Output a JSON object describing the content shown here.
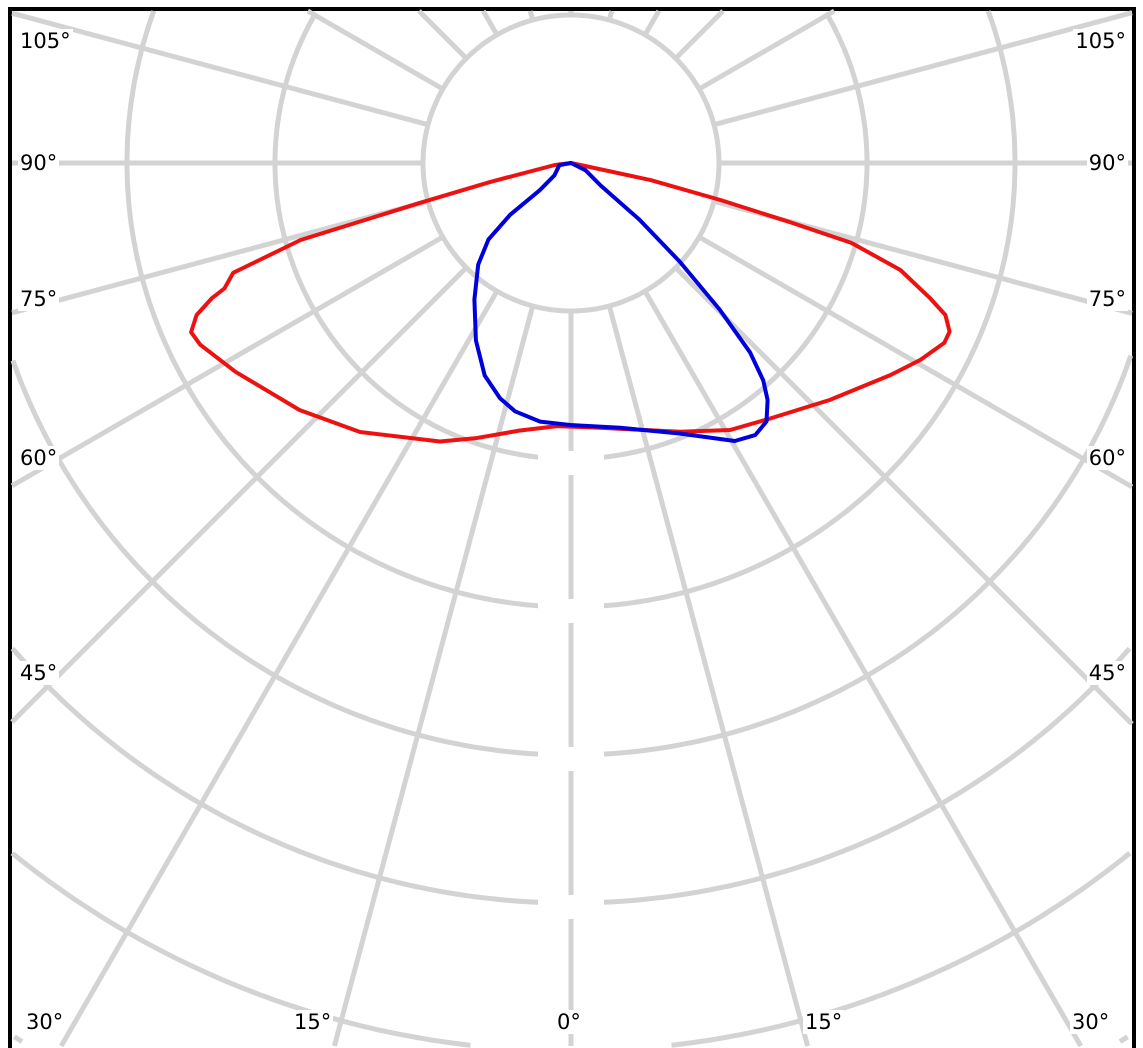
{
  "chart_data": {
    "type": "polar-line",
    "angle_unit": "degrees",
    "angle_zero": "down",
    "angle_step": 15,
    "radial_grid_rings": [
      1,
      2,
      3,
      4,
      5,
      6,
      7
    ],
    "radial_tick_labels": [],
    "grid": true,
    "angle_labels": {
      "left": [
        "105°",
        "90°",
        "75°",
        "60°",
        "45°"
      ],
      "right": [
        "105°",
        "90°",
        "75°",
        "60°",
        "45°"
      ],
      "bottom": [
        "30°",
        "15°",
        "0°",
        "15°",
        "30°"
      ]
    },
    "series": [
      {
        "color": "#ee1111",
        "points": [
          [
            0,
            0
          ],
          [
            -82.9,
            0.11
          ],
          [
            -76.8,
            0.56
          ],
          [
            -75.2,
            1.06
          ],
          [
            -74.1,
            1.9
          ],
          [
            -72.0,
            2.4
          ],
          [
            -70.1,
            2.49
          ],
          [
            -69.4,
            2.59
          ],
          [
            -67.9,
            2.73
          ],
          [
            -66.0,
            2.81
          ],
          [
            -63.9,
            2.79
          ],
          [
            -58.1,
            2.67
          ],
          [
            -47.7,
            2.48
          ],
          [
            -38.1,
            2.31
          ],
          [
            -25.2,
            2.08
          ],
          [
            -19.2,
            1.97
          ],
          [
            -10.8,
            1.84
          ],
          [
            -3.0,
            1.78
          ],
          [
            6.2,
            1.8
          ],
          [
            22.1,
            1.96
          ],
          [
            30.8,
            2.1
          ],
          [
            38.0,
            2.19
          ],
          [
            47.5,
            2.37
          ],
          [
            56.4,
            2.59
          ],
          [
            60.6,
            2.71
          ],
          [
            64.3,
            2.8
          ],
          [
            66.0,
            2.8
          ],
          [
            67.9,
            2.73
          ],
          [
            69.4,
            2.59
          ],
          [
            72.0,
            2.34
          ],
          [
            74.1,
            1.97
          ],
          [
            74.9,
            1.53
          ],
          [
            76.1,
            1.04
          ],
          [
            77.9,
            0.55
          ],
          [
            78.1,
            0.13
          ],
          [
            0,
            0
          ]
        ]
      },
      {
        "color": "#0000dd",
        "points": [
          [
            0,
            0
          ],
          [
            -79.7,
            0.08
          ],
          [
            -53.1,
            0.14
          ],
          [
            -48.9,
            0.28
          ],
          [
            -49.6,
            0.54
          ],
          [
            -47.2,
            0.76
          ],
          [
            -42.4,
            0.93
          ],
          [
            -35.3,
            1.13
          ],
          [
            -28.2,
            1.36
          ],
          [
            -22.1,
            1.55
          ],
          [
            -16.8,
            1.66
          ],
          [
            -12.7,
            1.72
          ],
          [
            -6.8,
            1.76
          ],
          [
            -0.2,
            1.77
          ],
          [
            10.5,
            1.82
          ],
          [
            21.9,
            1.97
          ],
          [
            30.5,
            2.18
          ],
          [
            34.1,
            2.22
          ],
          [
            37.1,
            2.19
          ],
          [
            39.7,
            2.08
          ],
          [
            41.5,
            1.96
          ],
          [
            43.4,
            1.76
          ],
          [
            45.4,
            1.41
          ],
          [
            47.8,
            0.99
          ],
          [
            50.4,
            0.6
          ],
          [
            52.8,
            0.25
          ],
          [
            63.4,
            0.11
          ],
          [
            0,
            0
          ]
        ]
      }
    ]
  },
  "colors": {
    "grid": "#d3d3d3",
    "frame": "#000000"
  }
}
